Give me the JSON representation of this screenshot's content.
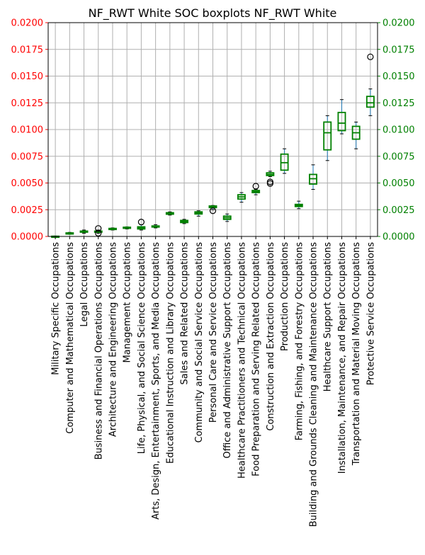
{
  "chart_data": {
    "type": "box",
    "title": "NF_RWT White SOC boxplots NF_RWT White",
    "ylim": [
      0,
      0.02
    ],
    "yticks": [
      "0.0000",
      "0.0025",
      "0.0050",
      "0.0075",
      "0.0100",
      "0.0125",
      "0.0150",
      "0.0175",
      "0.0200"
    ],
    "left_axis_color": "#ff0000",
    "right_axis_color": "#008000",
    "box_color": "#008000",
    "whisker_color": "#1f77b4",
    "median_color": "#008000",
    "grid": true,
    "categories": [
      "Military Specific Occupations",
      "Computer and Mathematical Occupations",
      "Legal Occupations",
      "Business and Financial Operations Occupations",
      "Architecture and Engineering Occupations",
      "Management Occupations",
      "Life, Physical, and Social Science Occupations",
      "Arts, Design, Entertainment, Sports, and Media Occupations",
      "Educational Instruction and Library Occupations",
      "Sales and Related Occupations",
      "Community and Social Service Occupations",
      "Personal Care and Service Occupations",
      "Office and Administrative Support Occupations",
      "Healthcare Practitioners and Technical Occupations",
      "Food Preparation and Serving Related Occupations",
      "Construction and Extraction Occupations",
      "Production Occupations",
      "Farming, Fishing, and Forestry Occupations",
      "Building and Grounds Cleaning and Maintenance Occupations",
      "Healthcare Support Occupations",
      "Installation, Maintenance, and Repair Occupations",
      "Transportation and Material Moving Occupations",
      "Protective Service Occupations"
    ],
    "boxes": [
      {
        "min": 0.0,
        "q1": 0.0,
        "median": 0.0,
        "q3": 2e-05,
        "max": 4e-05,
        "outliers": []
      },
      {
        "min": 0.0002,
        "q1": 0.00025,
        "median": 0.0003,
        "q3": 0.00033,
        "max": 0.00038,
        "outliers": []
      },
      {
        "min": 0.0003,
        "q1": 0.0004,
        "median": 0.00045,
        "q3": 0.0005,
        "max": 0.0006,
        "outliers": []
      },
      {
        "min": 0.0003,
        "q1": 0.0004,
        "median": 0.00045,
        "q3": 0.0005,
        "max": 0.0006,
        "outliers": [
          0.00075,
          0.0003
        ]
      },
      {
        "min": 0.0006,
        "q1": 0.00065,
        "median": 0.0007,
        "q3": 0.00075,
        "max": 0.0008,
        "outliers": []
      },
      {
        "min": 0.0007,
        "q1": 0.00078,
        "median": 0.00082,
        "q3": 0.00086,
        "max": 0.0009,
        "outliers": []
      },
      {
        "min": 0.0006,
        "q1": 0.0007,
        "median": 0.0008,
        "q3": 0.0009,
        "max": 0.0011,
        "outliers": [
          0.00135
        ]
      },
      {
        "min": 0.0008,
        "q1": 0.00088,
        "median": 0.00093,
        "q3": 0.00098,
        "max": 0.0011,
        "outliers": []
      },
      {
        "min": 0.002,
        "q1": 0.00208,
        "median": 0.00215,
        "q3": 0.00222,
        "max": 0.0023,
        "outliers": []
      },
      {
        "min": 0.0012,
        "q1": 0.0013,
        "median": 0.0014,
        "q3": 0.0015,
        "max": 0.0016,
        "outliers": []
      },
      {
        "min": 0.0019,
        "q1": 0.0021,
        "median": 0.0022,
        "q3": 0.0023,
        "max": 0.0024,
        "outliers": []
      },
      {
        "min": 0.0025,
        "q1": 0.0027,
        "median": 0.0028,
        "q3": 0.00285,
        "max": 0.0029,
        "outliers": [
          0.0024
        ]
      },
      {
        "min": 0.0014,
        "q1": 0.0016,
        "median": 0.00175,
        "q3": 0.0019,
        "max": 0.0021,
        "outliers": []
      },
      {
        "min": 0.0032,
        "q1": 0.0035,
        "median": 0.0037,
        "q3": 0.0039,
        "max": 0.0041,
        "outliers": []
      },
      {
        "min": 0.0039,
        "q1": 0.0041,
        "median": 0.0042,
        "q3": 0.0043,
        "max": 0.0044,
        "outliers": [
          0.0047
        ]
      },
      {
        "min": 0.0056,
        "q1": 0.0057,
        "median": 0.0058,
        "q3": 0.00595,
        "max": 0.0061,
        "outliers": [
          0.0051,
          0.00495
        ]
      },
      {
        "min": 0.0059,
        "q1": 0.0062,
        "median": 0.0069,
        "q3": 0.0077,
        "max": 0.0082,
        "outliers": []
      },
      {
        "min": 0.0026,
        "q1": 0.0028,
        "median": 0.0029,
        "q3": 0.003,
        "max": 0.0033,
        "outliers": []
      },
      {
        "min": 0.0044,
        "q1": 0.0049,
        "median": 0.0054,
        "q3": 0.0058,
        "max": 0.0067,
        "outliers": []
      },
      {
        "min": 0.0071,
        "q1": 0.0081,
        "median": 0.0097,
        "q3": 0.0107,
        "max": 0.0113,
        "outliers": []
      },
      {
        "min": 0.0096,
        "q1": 0.0099,
        "median": 0.0106,
        "q3": 0.0116,
        "max": 0.0128,
        "outliers": []
      },
      {
        "min": 0.0082,
        "q1": 0.0091,
        "median": 0.0097,
        "q3": 0.0103,
        "max": 0.0107,
        "outliers": []
      },
      {
        "min": 0.0113,
        "q1": 0.0121,
        "median": 0.0125,
        "q3": 0.0131,
        "max": 0.0138,
        "outliers": [
          0.0168
        ]
      }
    ]
  }
}
